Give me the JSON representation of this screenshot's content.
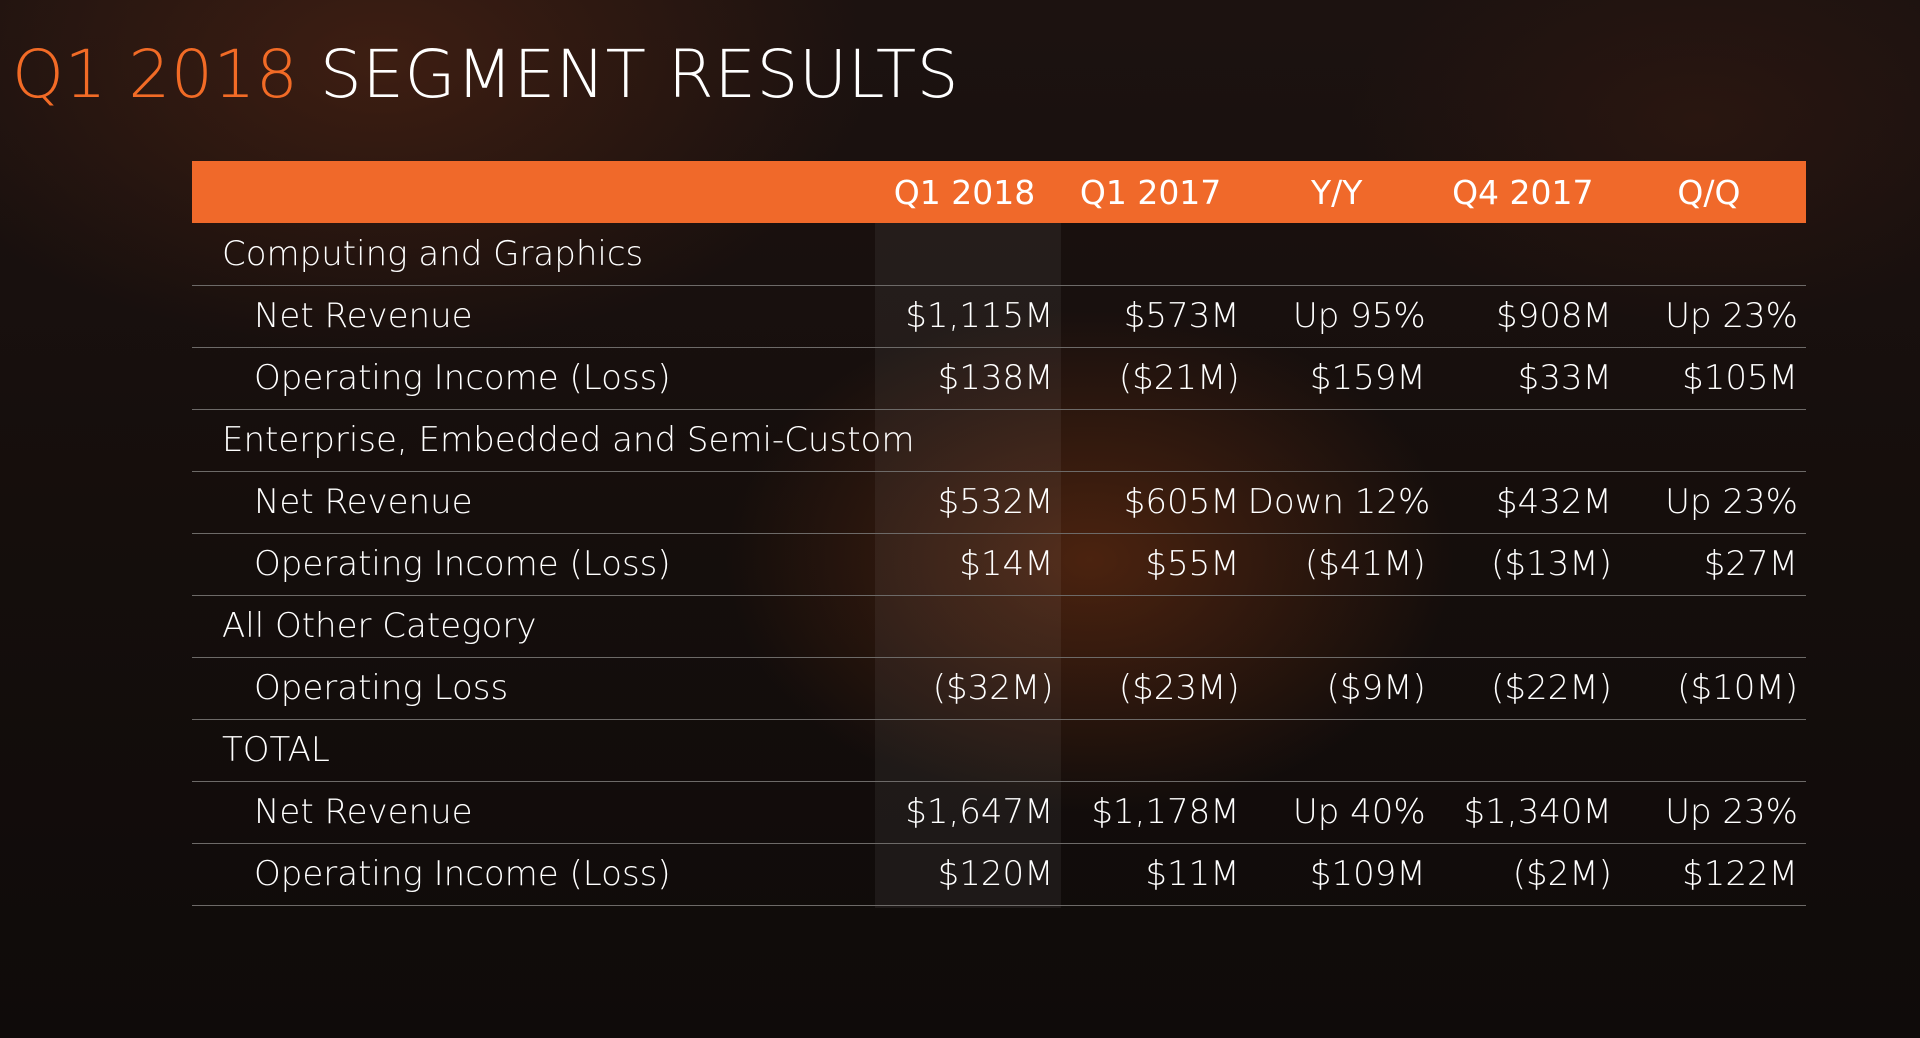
{
  "title": {
    "accent": "Q1 2018",
    "main": "SEGMENT RESULTS"
  },
  "colors": {
    "accent": "#f26b26",
    "header_bar": "#f0692a",
    "background": "#150e0c"
  },
  "table": {
    "columns": [
      "Q1 2018",
      "Q1 2017",
      "Y/Y",
      "Q4 2017",
      "Q/Q"
    ],
    "segments": [
      {
        "name": "Computing and Graphics",
        "rows": [
          {
            "label": "Net Revenue",
            "values": [
              "$1,115M",
              "$573M",
              "Up 95%",
              "$908M",
              "Up 23%"
            ]
          },
          {
            "label": "Operating Income (Loss)",
            "values": [
              "$138M",
              "($21M)",
              "$159M",
              "$33M",
              "$105M"
            ]
          }
        ]
      },
      {
        "name": "Enterprise, Embedded and Semi-Custom",
        "rows": [
          {
            "label": "Net Revenue",
            "values": [
              "$532M",
              "$605M",
              "Down 12%",
              "$432M",
              "Up 23%"
            ]
          },
          {
            "label": "Operating Income (Loss)",
            "values": [
              "$14M",
              "$55M",
              "($41M)",
              "($13M)",
              "$27M"
            ]
          }
        ]
      },
      {
        "name": "All Other Category",
        "rows": [
          {
            "label": "Operating Loss",
            "values": [
              "($32M)",
              "($23M)",
              "($9M)",
              "($22M)",
              "($10M)"
            ]
          }
        ]
      },
      {
        "name": "TOTAL",
        "rows": [
          {
            "label": "Net Revenue",
            "values": [
              "$1,647M",
              "$1,178M",
              "Up 40%",
              "$1,340M",
              "Up 23%"
            ]
          },
          {
            "label": "Operating Income (Loss)",
            "values": [
              "$120M",
              "$11M",
              "$109M",
              "($2M)",
              "$122M"
            ]
          }
        ]
      }
    ]
  }
}
